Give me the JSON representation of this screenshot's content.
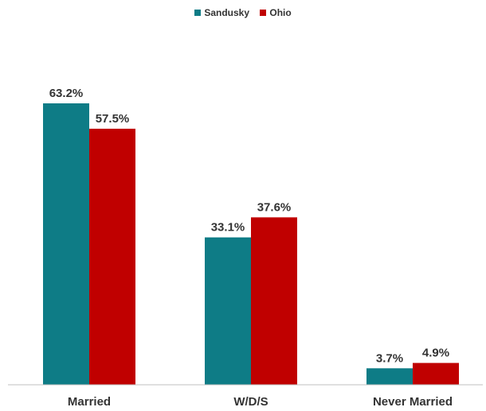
{
  "chart_data": {
    "type": "bar",
    "categories": [
      "Married",
      "W/D/S",
      "Never Married"
    ],
    "series": [
      {
        "name": "Sandusky",
        "color": "#0E7C86",
        "values": [
          63.2,
          33.1,
          3.7
        ],
        "labels": [
          "63.2%",
          "33.1%",
          "3.7%"
        ]
      },
      {
        "name": "Ohio",
        "color": "#C00000",
        "values": [
          57.5,
          37.6,
          4.9
        ],
        "labels": [
          "57.5%",
          "37.6%",
          "4.9%"
        ]
      }
    ],
    "ylim": [
      0,
      70
    ],
    "legend_position": "top-center",
    "grid": false
  }
}
